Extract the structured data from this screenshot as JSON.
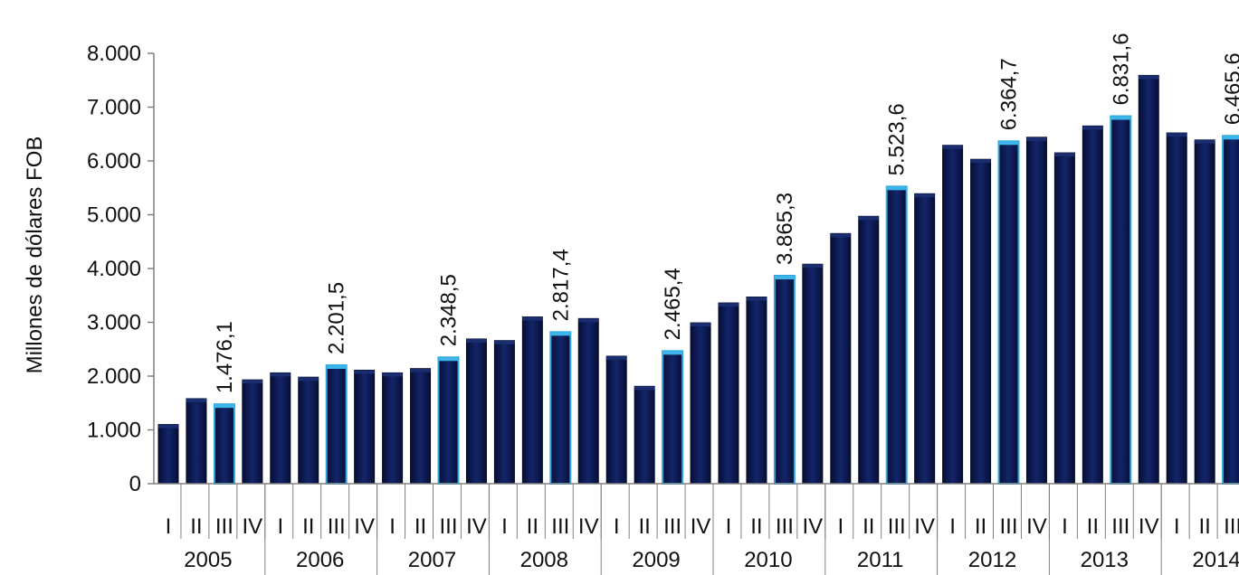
{
  "chart_data": {
    "type": "bar",
    "ylabel": "Millones de dólares FOB",
    "xlabel": "",
    "ylim": [
      0,
      8000
    ],
    "y_ticks": [
      "0",
      "1.000",
      "2.000",
      "3.000",
      "4.000",
      "5.000",
      "6.000",
      "7.000",
      "8.000"
    ],
    "grid": false,
    "colors": {
      "bar": "#0a1a52",
      "highlight_edge": "#2fa6dd"
    },
    "years": [
      "2005",
      "2006",
      "2007",
      "2008",
      "2009",
      "2010",
      "2011",
      "2012",
      "2013",
      "2014"
    ],
    "quarters": [
      "I",
      "II",
      "III",
      "IV"
    ],
    "values": [
      1100,
      1580,
      1476.1,
      1930,
      2060,
      1980,
      2201.5,
      2110,
      2060,
      2140,
      2348.5,
      2690,
      2660,
      3100,
      2817.4,
      3070,
      2370,
      1810,
      2465.4,
      2990,
      3360,
      3470,
      3865.3,
      4080,
      4650,
      4970,
      5523.6,
      5390,
      6290,
      6030,
      6364.7,
      6440,
      6150,
      6650,
      6831.6,
      7590,
      6520,
      6390,
      6465.6
    ],
    "data_labels": [
      "",
      "",
      "1.476,1",
      "",
      "",
      "",
      "2.201,5",
      "",
      "",
      "",
      "2.348,5",
      "",
      "",
      "",
      "2.817,4",
      "",
      "",
      "",
      "2.465,4",
      "",
      "",
      "",
      "3.865,3",
      "",
      "",
      "",
      "5.523,6",
      "",
      "",
      "",
      "6.364,7",
      "",
      "",
      "",
      "6.831,6",
      "",
      "",
      "",
      "6.465,6"
    ]
  }
}
